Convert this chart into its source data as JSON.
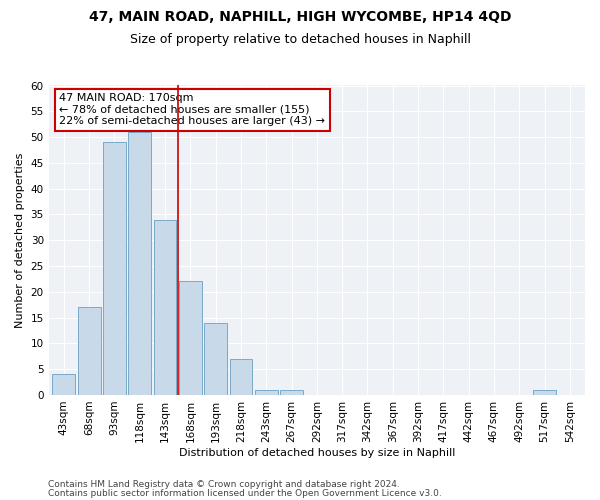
{
  "title": "47, MAIN ROAD, NAPHILL, HIGH WYCOMBE, HP14 4QD",
  "subtitle": "Size of property relative to detached houses in Naphill",
  "xlabel": "Distribution of detached houses by size in Naphill",
  "ylabel": "Number of detached properties",
  "bar_labels": [
    "43sqm",
    "68sqm",
    "93sqm",
    "118sqm",
    "143sqm",
    "168sqm",
    "193sqm",
    "218sqm",
    "243sqm",
    "267sqm",
    "292sqm",
    "317sqm",
    "342sqm",
    "367sqm",
    "392sqm",
    "417sqm",
    "442sqm",
    "467sqm",
    "492sqm",
    "517sqm",
    "542sqm"
  ],
  "bar_values": [
    4,
    17,
    49,
    51,
    34,
    22,
    14,
    7,
    1,
    1,
    0,
    0,
    0,
    0,
    0,
    0,
    0,
    0,
    0,
    1,
    0
  ],
  "bar_color": "#c8d9ea",
  "bar_edge_color": "#7aaac8",
  "vline_color": "#cc0000",
  "vline_x_index": 5,
  "annotation_line1": "47 MAIN ROAD: 170sqm",
  "annotation_line2": "← 78% of detached houses are smaller (155)",
  "annotation_line3": "22% of semi-detached houses are larger (43) →",
  "annotation_box_color": "#cc0000",
  "ylim": [
    0,
    60
  ],
  "yticks": [
    0,
    5,
    10,
    15,
    20,
    25,
    30,
    35,
    40,
    45,
    50,
    55,
    60
  ],
  "footer_line1": "Contains HM Land Registry data © Crown copyright and database right 2024.",
  "footer_line2": "Contains public sector information licensed under the Open Government Licence v3.0.",
  "bg_color": "#eef2f7",
  "title_fontsize": 10,
  "subtitle_fontsize": 9,
  "axis_label_fontsize": 8,
  "tick_fontsize": 7.5,
  "annotation_fontsize": 8,
  "footer_fontsize": 6.5
}
